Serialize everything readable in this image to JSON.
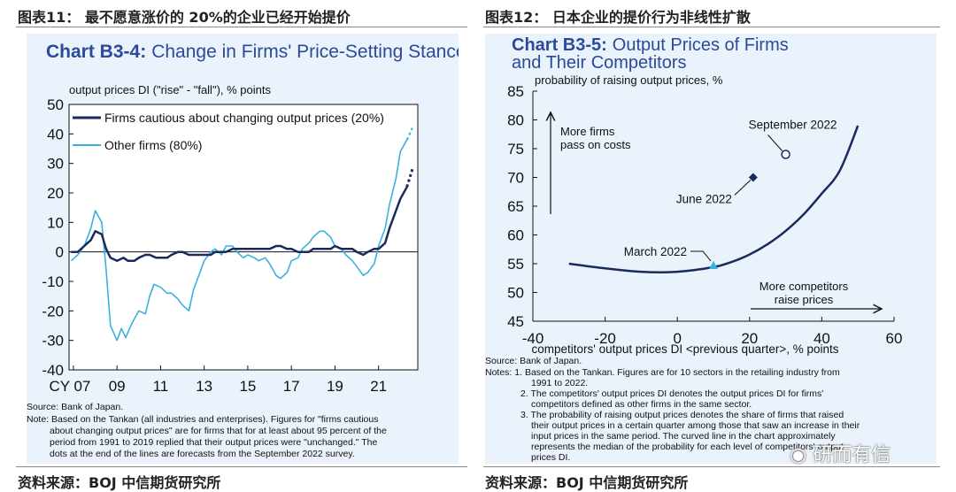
{
  "figures": [
    {
      "label": "图表11：",
      "title": "最不愿意涨价的 20%的企业已经开始提价",
      "source": "资料来源：BOJ 中信期货研究所"
    },
    {
      "label": "图表12：",
      "title": "日本企业的提价行为非线性扩散",
      "source": "资料来源：BOJ 中信期货研究所"
    }
  ],
  "watermark": "研而有信",
  "colors": {
    "dark": "#1a2a5e",
    "light": "#3bb0e0",
    "title_blue": "#2a4a9a",
    "panel": "#eaf2fb"
  },
  "chart_data": [
    {
      "type": "line",
      "title_bold": "Chart B3-4:",
      "title_rest": "Change in Firms' Price-Setting Stance",
      "ylabel": "output prices DI (\"rise\" - \"fall\"), % points",
      "ylim": [
        -40,
        50
      ],
      "yticks": [
        "50",
        "40",
        "30",
        "20",
        "10",
        "0",
        "-10",
        "-20",
        "-30",
        "-40"
      ],
      "xlim": [
        2006.8,
        2022.8
      ],
      "xticks": [
        {
          "v": 2007,
          "label": "CY 07"
        },
        {
          "v": 2009,
          "label": "09"
        },
        {
          "v": 2011,
          "label": "11"
        },
        {
          "v": 2013,
          "label": "13"
        },
        {
          "v": 2015,
          "label": "15"
        },
        {
          "v": 2017,
          "label": "17"
        },
        {
          "v": 2019,
          "label": "19"
        },
        {
          "v": 2021,
          "label": "21"
        }
      ],
      "series": [
        {
          "name": "Firms cautious about changing output prices (20%)",
          "color": "#1a2a5e",
          "points": [
            [
              2006.9,
              0
            ],
            [
              2007.2,
              0
            ],
            [
              2007.5,
              2
            ],
            [
              2007.8,
              4
            ],
            [
              2008.0,
              7
            ],
            [
              2008.3,
              6
            ],
            [
              2008.5,
              1
            ],
            [
              2008.7,
              -2
            ],
            [
              2009.0,
              -3
            ],
            [
              2009.3,
              -2
            ],
            [
              2009.5,
              -3
            ],
            [
              2009.8,
              -3
            ],
            [
              2010.0,
              -2
            ],
            [
              2010.3,
              -1
            ],
            [
              2010.5,
              -1
            ],
            [
              2010.8,
              -2
            ],
            [
              2011.0,
              -2
            ],
            [
              2011.3,
              -2
            ],
            [
              2011.5,
              -1
            ],
            [
              2011.8,
              0
            ],
            [
              2012.0,
              0
            ],
            [
              2012.3,
              -1
            ],
            [
              2012.5,
              -1
            ],
            [
              2012.8,
              -1
            ],
            [
              2013.0,
              -1
            ],
            [
              2013.3,
              -1
            ],
            [
              2013.5,
              0
            ],
            [
              2013.8,
              0
            ],
            [
              2014.0,
              0
            ],
            [
              2014.3,
              1
            ],
            [
              2014.5,
              1
            ],
            [
              2014.8,
              1
            ],
            [
              2015.0,
              1
            ],
            [
              2015.3,
              1
            ],
            [
              2015.5,
              1
            ],
            [
              2015.8,
              1
            ],
            [
              2016.0,
              1
            ],
            [
              2016.3,
              2
            ],
            [
              2016.5,
              2
            ],
            [
              2016.8,
              1
            ],
            [
              2017.0,
              1
            ],
            [
              2017.3,
              0
            ],
            [
              2017.5,
              0
            ],
            [
              2017.8,
              0
            ],
            [
              2018.0,
              1
            ],
            [
              2018.3,
              1
            ],
            [
              2018.5,
              1
            ],
            [
              2018.8,
              1
            ],
            [
              2019.0,
              2
            ],
            [
              2019.3,
              1
            ],
            [
              2019.5,
              1
            ],
            [
              2019.8,
              1
            ],
            [
              2020.0,
              0
            ],
            [
              2020.3,
              -1
            ],
            [
              2020.5,
              0
            ],
            [
              2020.8,
              1
            ],
            [
              2021.0,
              1
            ],
            [
              2021.3,
              3
            ],
            [
              2021.5,
              8
            ],
            [
              2021.8,
              14
            ],
            [
              2022.0,
              18
            ],
            [
              2022.3,
              22
            ]
          ],
          "forecast": [
            [
              2022.3,
              22
            ],
            [
              2022.55,
              28
            ]
          ]
        },
        {
          "name": "Other firms (80%)",
          "color": "#3bb0e0",
          "points": [
            [
              2006.9,
              -3
            ],
            [
              2007.2,
              -1
            ],
            [
              2007.5,
              2
            ],
            [
              2007.8,
              8
            ],
            [
              2008.0,
              14
            ],
            [
              2008.3,
              10
            ],
            [
              2008.5,
              -6
            ],
            [
              2008.7,
              -25
            ],
            [
              2009.0,
              -30
            ],
            [
              2009.2,
              -26
            ],
            [
              2009.4,
              -29
            ],
            [
              2009.7,
              -24
            ],
            [
              2010.0,
              -20
            ],
            [
              2010.3,
              -21
            ],
            [
              2010.5,
              -15
            ],
            [
              2010.7,
              -11
            ],
            [
              2011.0,
              -12
            ],
            [
              2011.3,
              -14
            ],
            [
              2011.5,
              -14
            ],
            [
              2011.8,
              -16
            ],
            [
              2012.0,
              -18
            ],
            [
              2012.3,
              -20
            ],
            [
              2012.5,
              -13
            ],
            [
              2012.8,
              -7
            ],
            [
              2013.0,
              -3
            ],
            [
              2013.3,
              0
            ],
            [
              2013.5,
              1
            ],
            [
              2013.8,
              -1
            ],
            [
              2014.0,
              2
            ],
            [
              2014.3,
              2
            ],
            [
              2014.5,
              0
            ],
            [
              2014.8,
              -2
            ],
            [
              2015.0,
              -1
            ],
            [
              2015.3,
              -2
            ],
            [
              2015.5,
              -3
            ],
            [
              2015.8,
              -2
            ],
            [
              2016.0,
              -4
            ],
            [
              2016.3,
              -8
            ],
            [
              2016.5,
              -9
            ],
            [
              2016.8,
              -7
            ],
            [
              2017.0,
              -3
            ],
            [
              2017.3,
              -2
            ],
            [
              2017.5,
              1
            ],
            [
              2017.8,
              3
            ],
            [
              2018.0,
              5
            ],
            [
              2018.3,
              7
            ],
            [
              2018.5,
              7
            ],
            [
              2018.8,
              5
            ],
            [
              2019.0,
              2
            ],
            [
              2019.3,
              1
            ],
            [
              2019.5,
              -1
            ],
            [
              2019.8,
              -3
            ],
            [
              2020.0,
              -5
            ],
            [
              2020.3,
              -8
            ],
            [
              2020.5,
              -7
            ],
            [
              2020.8,
              -4
            ],
            [
              2021.0,
              2
            ],
            [
              2021.3,
              8
            ],
            [
              2021.5,
              16
            ],
            [
              2021.8,
              25
            ],
            [
              2022.0,
              34
            ],
            [
              2022.3,
              38
            ]
          ],
          "forecast": [
            [
              2022.3,
              38
            ],
            [
              2022.55,
              42
            ]
          ]
        }
      ],
      "source_note": "Source: Bank of Japan.",
      "notes": [
        "Note: Based on the Tankan (all industries and enterprises). Figures for \"firms cautious",
        "about changing output prices\" are for firms that for at least about 95 percent of the",
        "period from 1991 to 2019 replied that their output prices were \"unchanged.\" The",
        "dots at the end of the lines are forecasts from the September 2022 survey."
      ]
    },
    {
      "type": "scatter",
      "title_bold": "Chart B3-5:",
      "title_rest": "Output Prices of Firms and Their Competitors",
      "ylabel": "probability of raising output prices, %",
      "xlabel": "competitors' output prices DI <previous quarter>, % points",
      "xlim": [
        -40,
        60
      ],
      "ylim": [
        45,
        85
      ],
      "xticks": [
        "-40",
        "-20",
        "0",
        "20",
        "40",
        "60"
      ],
      "yticks": [
        "85",
        "80",
        "75",
        "70",
        "65",
        "60",
        "55",
        "50",
        "45"
      ],
      "curve": [
        [
          -30,
          55
        ],
        [
          -20,
          54.2
        ],
        [
          -10,
          53.6
        ],
        [
          0,
          53.6
        ],
        [
          10,
          54.4
        ],
        [
          15,
          55.3
        ],
        [
          20,
          56.6
        ],
        [
          25,
          58.4
        ],
        [
          30,
          60.7
        ],
        [
          35,
          63.6
        ],
        [
          40,
          67.2
        ],
        [
          45,
          71.2
        ],
        [
          50,
          79
        ]
      ],
      "points": [
        {
          "label": "March 2022",
          "x": 10,
          "y": 54.7,
          "marker": "triangle"
        },
        {
          "label": "June 2022",
          "x": 21,
          "y": 70,
          "marker": "diamond"
        },
        {
          "label": "September 2022",
          "x": 30,
          "y": 74,
          "marker": "circle"
        }
      ],
      "annotations": {
        "more_firms_1": "More firms",
        "more_firms_2": "pass on costs",
        "more_comp_1": "More competitors",
        "more_comp_2": "raise prices"
      },
      "source_note": "Source: Bank of Japan.",
      "notes": [
        "Notes: 1. Based on the Tankan. Figures are for 10 sectors in the retailing industry from",
        "1991 to 2022.",
        "2. The competitors' output prices DI denotes the output prices DI for firms'",
        "competitors defined as other firms in the same sector.",
        "3. The probability of raising output prices denotes the share of firms that raised",
        "their output prices in a certain quarter among those that saw an increase in their",
        "input prices in the same period. The curved line in the chart approximately",
        "represents the median of the probability for each level of competitors' output",
        "prices DI."
      ]
    }
  ]
}
